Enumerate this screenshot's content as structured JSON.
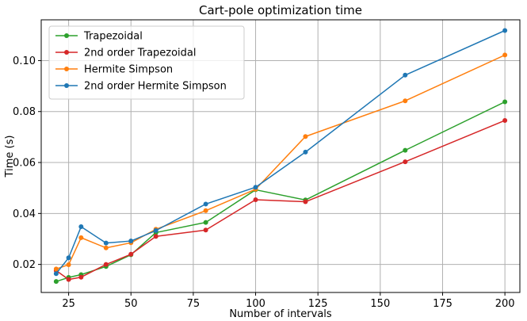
{
  "chart_data": {
    "type": "line",
    "title": "Cart-pole optimization time",
    "xlabel": "Number of intervals",
    "ylabel": "Time (s)",
    "xlim": [
      14,
      206
    ],
    "ylim": [
      0.009,
      0.116
    ],
    "xticks": [
      25,
      50,
      75,
      100,
      125,
      150,
      175,
      200
    ],
    "xtick_labels": [
      "25",
      "50",
      "75",
      "100",
      "125",
      "150",
      "175",
      "200"
    ],
    "yticks": [
      0.02,
      0.04,
      0.06,
      0.08,
      0.1
    ],
    "ytick_labels": [
      "0.02",
      "0.04",
      "0.06",
      "0.08",
      "0.10"
    ],
    "grid": true,
    "legend_position": "top-left",
    "x": [
      20,
      25,
      30,
      40,
      50,
      60,
      80,
      100,
      120,
      160,
      200
    ],
    "series": [
      {
        "name": "Trapezoidal",
        "color": "#2ca02c",
        "values": [
          0.0133,
          0.0149,
          0.016,
          0.0192,
          0.0238,
          0.0325,
          0.0365,
          0.0493,
          0.0453,
          0.0648,
          0.0838
        ]
      },
      {
        "name": "2nd order Trapezoidal",
        "color": "#d62728",
        "values": [
          0.0176,
          0.0141,
          0.015,
          0.02,
          0.024,
          0.031,
          0.0335,
          0.0454,
          0.0446,
          0.0603,
          0.0765
        ]
      },
      {
        "name": "Hermite Simpson",
        "color": "#ff7f0e",
        "values": [
          0.0182,
          0.0199,
          0.0305,
          0.0265,
          0.0285,
          0.0338,
          0.0411,
          0.0495,
          0.0702,
          0.0842,
          0.1022
        ]
      },
      {
        "name": "2nd order Hermite Simpson",
        "color": "#1f77b4",
        "values": [
          0.0164,
          0.0226,
          0.0348,
          0.0284,
          0.0292,
          0.0333,
          0.0437,
          0.0503,
          0.0641,
          0.0943,
          0.1118
        ]
      }
    ]
  }
}
